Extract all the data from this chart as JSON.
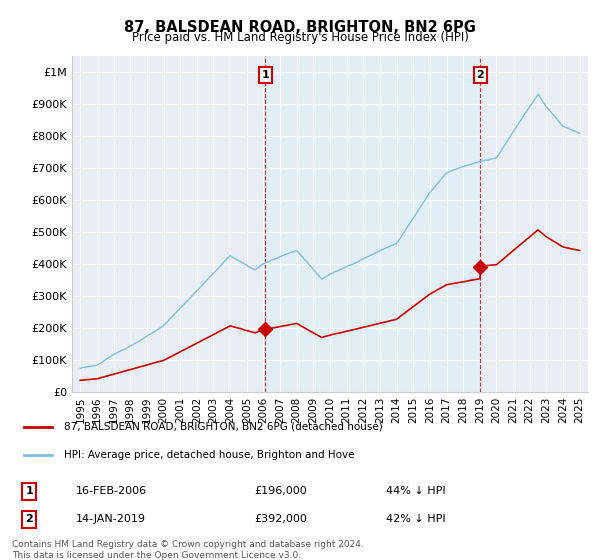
{
  "title": "87, BALSDEAN ROAD, BRIGHTON, BN2 6PG",
  "subtitle": "Price paid vs. HM Land Registry's House Price Index (HPI)",
  "ylabel_ticks": [
    "£0",
    "£100K",
    "£200K",
    "£300K",
    "£400K",
    "£500K",
    "£600K",
    "£700K",
    "£800K",
    "£900K",
    "£1M"
  ],
  "ytick_values": [
    0,
    100000,
    200000,
    300000,
    400000,
    500000,
    600000,
    700000,
    800000,
    900000,
    1000000
  ],
  "ylim": [
    0,
    1050000
  ],
  "xlim_start": 1994.5,
  "xlim_end": 2025.5,
  "sale1_x": 2006.12,
  "sale1_y": 196000,
  "sale2_x": 2019.04,
  "sale2_y": 392000,
  "legend_red": "87, BALSDEAN ROAD, BRIGHTON, BN2 6PG (detached house)",
  "legend_blue": "HPI: Average price, detached house, Brighton and Hove",
  "sale1_date": "16-FEB-2006",
  "sale1_price": "£196,000",
  "sale1_pct": "44% ↓ HPI",
  "sale2_date": "14-JAN-2019",
  "sale2_price": "£392,000",
  "sale2_pct": "42% ↓ HPI",
  "footer": "Contains HM Land Registry data © Crown copyright and database right 2024.\nThis data is licensed under the Open Government Licence v3.0.",
  "hpi_color": "#7fbfdf",
  "price_color": "#cc0000",
  "shade_color": "#ddeef8",
  "background_chart": "#e8eef4",
  "grid_color": "#ffffff",
  "label_box_color": "#cc0000"
}
